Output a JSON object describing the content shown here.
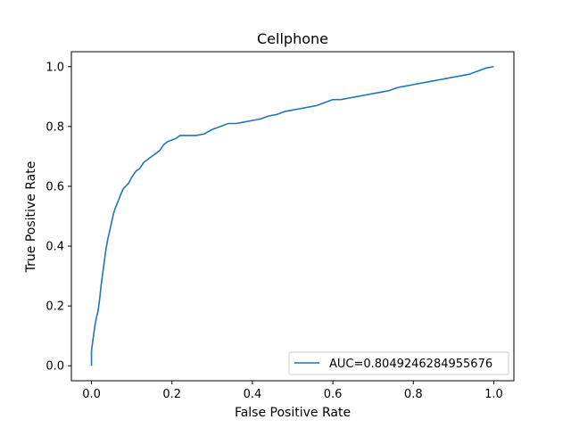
{
  "chart_data": {
    "type": "line",
    "title": "Cellphone",
    "xlabel": "False Positive Rate",
    "ylabel": "True Positive Rate",
    "xlim": [
      -0.05,
      1.05
    ],
    "ylim": [
      -0.05,
      1.05
    ],
    "xticks": [
      0.0,
      0.2,
      0.4,
      0.6,
      0.8,
      1.0
    ],
    "xtick_labels": [
      "0.0",
      "0.2",
      "0.4",
      "0.6",
      "0.8",
      "1.0"
    ],
    "yticks": [
      0.0,
      0.2,
      0.4,
      0.6,
      0.8,
      1.0
    ],
    "ytick_labels": [
      "0.0",
      "0.2",
      "0.4",
      "0.6",
      "0.8",
      "1.0"
    ],
    "grid": false,
    "legend_position": "lower-right",
    "series": [
      {
        "name": "AUC=0.8049246284955676",
        "color": "#1f77b4",
        "x": [
          0.0,
          0.0,
          0.005,
          0.008,
          0.012,
          0.016,
          0.02,
          0.024,
          0.028,
          0.032,
          0.036,
          0.04,
          0.045,
          0.05,
          0.055,
          0.06,
          0.066,
          0.072,
          0.078,
          0.085,
          0.092,
          0.1,
          0.11,
          0.12,
          0.13,
          0.14,
          0.15,
          0.16,
          0.17,
          0.18,
          0.19,
          0.2,
          0.21,
          0.22,
          0.24,
          0.26,
          0.28,
          0.3,
          0.32,
          0.34,
          0.36,
          0.38,
          0.4,
          0.42,
          0.44,
          0.46,
          0.48,
          0.5,
          0.52,
          0.54,
          0.56,
          0.58,
          0.6,
          0.62,
          0.64,
          0.66,
          0.68,
          0.7,
          0.72,
          0.74,
          0.76,
          0.78,
          0.8,
          0.82,
          0.84,
          0.86,
          0.88,
          0.9,
          0.92,
          0.94,
          0.96,
          0.98,
          1.0
        ],
        "y": [
          0.0,
          0.05,
          0.1,
          0.13,
          0.16,
          0.18,
          0.22,
          0.27,
          0.31,
          0.35,
          0.39,
          0.42,
          0.45,
          0.48,
          0.51,
          0.53,
          0.55,
          0.57,
          0.59,
          0.6,
          0.61,
          0.63,
          0.65,
          0.66,
          0.68,
          0.69,
          0.7,
          0.71,
          0.72,
          0.74,
          0.75,
          0.755,
          0.76,
          0.77,
          0.77,
          0.77,
          0.775,
          0.79,
          0.8,
          0.81,
          0.81,
          0.815,
          0.82,
          0.825,
          0.835,
          0.84,
          0.85,
          0.855,
          0.86,
          0.865,
          0.87,
          0.88,
          0.89,
          0.89,
          0.895,
          0.9,
          0.905,
          0.91,
          0.915,
          0.92,
          0.93,
          0.935,
          0.94,
          0.945,
          0.95,
          0.955,
          0.96,
          0.965,
          0.97,
          0.975,
          0.985,
          0.995,
          1.0
        ]
      }
    ]
  }
}
